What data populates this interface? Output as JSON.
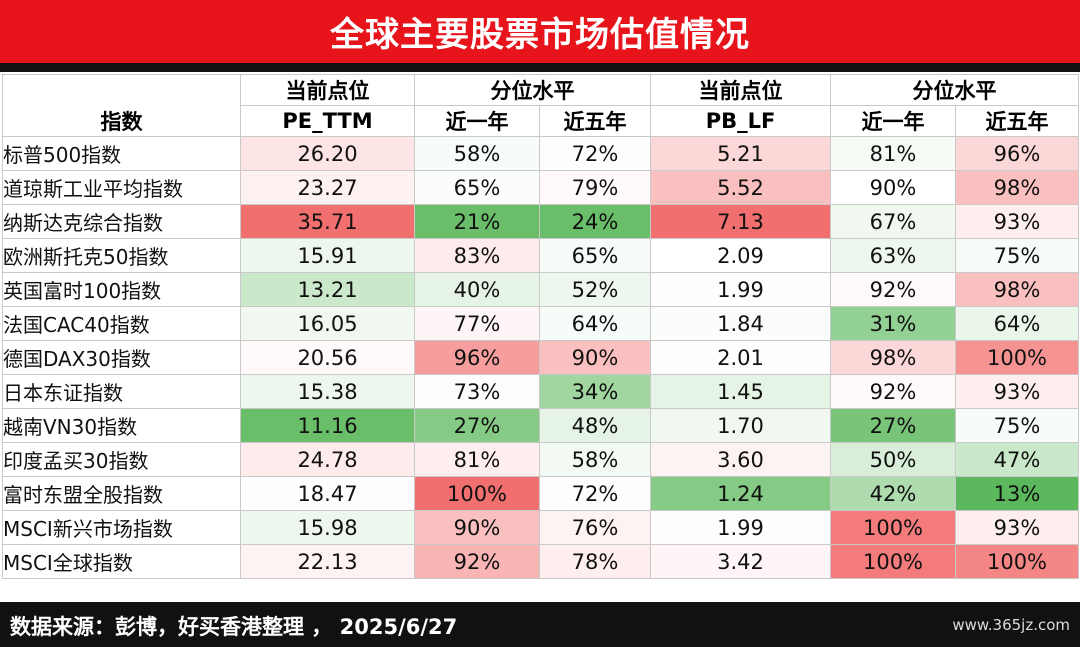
{
  "title": "全球主要股票市场估值情况",
  "source": "数据来源：彭博，好买香港整理 ， 2025/6/27",
  "watermark": "www.365jz.com",
  "chart_data": {
    "type": "table",
    "header": {
      "index_col": "指数",
      "pe_group": "当前点位",
      "pe_label": "PE_TTM",
      "pe_pct_group": "分位水平",
      "pb_group": "当前点位",
      "pb_label": "PB_LF",
      "pb_pct_group": "分位水平",
      "one_year": "近一年",
      "five_year": "近五年"
    },
    "colors": {
      "red_strong": "#f26f6f",
      "red_light": "#fde2e2",
      "neutral": "#ffffff",
      "green_light": "#e6f4e6",
      "green_strong": "#5cb85c"
    },
    "rows": [
      {
        "name": "标普500指数",
        "cells": [
          "26.20",
          "58%",
          "72%",
          "5.21",
          "81%",
          "96%"
        ],
        "shade": [
          -0.45,
          0.15,
          0.05,
          -0.55,
          0.2,
          -0.55
        ]
      },
      {
        "name": "道琼斯工业平均指数",
        "cells": [
          "23.27",
          "65%",
          "79%",
          "5.52",
          "90%",
          "98%"
        ],
        "shade": [
          -0.25,
          0.1,
          -0.1,
          -0.65,
          0.0,
          -0.65
        ]
      },
      {
        "name": "纳斯达克综合指数",
        "cells": [
          "35.71",
          "21%",
          "24%",
          "7.13",
          "67%",
          "93%"
        ],
        "shade": [
          -1.0,
          0.95,
          0.95,
          -1.0,
          0.3,
          -0.3
        ]
      },
      {
        "name": "欧洲斯托克50指数",
        "cells": [
          "15.91",
          "83%",
          "65%",
          "2.09",
          "63%",
          "75%"
        ],
        "shade": [
          0.35,
          -0.35,
          0.15,
          0.0,
          0.35,
          0.15
        ]
      },
      {
        "name": "英国富时100指数",
        "cells": [
          "13.21",
          "40%",
          "52%",
          "1.99",
          "92%",
          "98%"
        ],
        "shade": [
          0.6,
          0.5,
          0.35,
          0.05,
          -0.1,
          -0.65
        ]
      },
      {
        "name": "法国CAC40指数",
        "cells": [
          "16.05",
          "77%",
          "64%",
          "1.84",
          "31%",
          "64%"
        ],
        "shade": [
          0.3,
          -0.15,
          0.15,
          0.1,
          0.8,
          0.4
        ]
      },
      {
        "name": "德国DAX30指数",
        "cells": [
          "20.56",
          "96%",
          "90%",
          "2.01",
          "98%",
          "100%"
        ],
        "shade": [
          -0.1,
          -0.8,
          -0.65,
          0.05,
          -0.55,
          -0.85
        ]
      },
      {
        "name": "日本东证指数",
        "cells": [
          "15.38",
          "73%",
          "34%",
          "1.45",
          "92%",
          "93%"
        ],
        "shade": [
          0.35,
          -0.05,
          0.75,
          0.5,
          -0.1,
          -0.3
        ]
      },
      {
        "name": "越南VN30指数",
        "cells": [
          "11.16",
          "27%",
          "48%",
          "1.70",
          "27%",
          "75%"
        ],
        "shade": [
          0.95,
          0.85,
          0.5,
          0.3,
          0.9,
          0.15
        ]
      },
      {
        "name": "印度孟买30指数",
        "cells": [
          "24.78",
          "81%",
          "58%",
          "3.60",
          "50%",
          "47%"
        ],
        "shade": [
          -0.35,
          -0.3,
          0.25,
          -0.2,
          0.55,
          0.6
        ]
      },
      {
        "name": "富时东盟全股指数",
        "cells": [
          "18.47",
          "100%",
          "72%",
          "1.24",
          "42%",
          "13%"
        ],
        "shade": [
          0.05,
          -1.0,
          0.05,
          0.85,
          0.7,
          1.0
        ]
      },
      {
        "name": "MSCI新兴市场指数",
        "cells": [
          "15.98",
          "90%",
          "76%",
          "1.99",
          "100%",
          "93%"
        ],
        "shade": [
          0.35,
          -0.65,
          -0.2,
          0.05,
          -0.95,
          -0.3
        ]
      },
      {
        "name": "MSCI全球指数",
        "cells": [
          "22.13",
          "92%",
          "78%",
          "3.42",
          "100%",
          "100%"
        ],
        "shade": [
          -0.2,
          -0.7,
          -0.3,
          -0.15,
          -0.95,
          -0.9
        ]
      }
    ]
  }
}
